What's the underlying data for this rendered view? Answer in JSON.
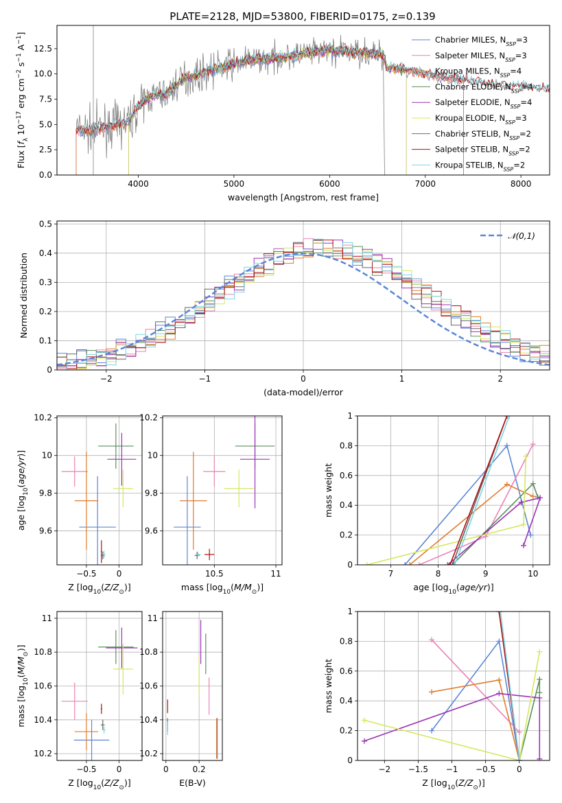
{
  "figure": {
    "title": "PLATE=2128, MJD=53800, FIBERID=0175, z=0.139"
  },
  "colors": {
    "Chabrier MILES": "#5b85d6",
    "Salpeter MILES": "#e882b4",
    "Kroupa MILES": "#e07b2a",
    "Chabrier ELODIE": "#5b8f5b",
    "Salpeter ELODIE": "#9b30b5",
    "Kroupa ELODIE": "#d4e85a",
    "Chabrier STELIB": "#666666",
    "Salpeter STELIB": "#b01010",
    "Kroupa STELIB": "#7dd3e0"
  },
  "chart_data": [
    {
      "id": "spectrum",
      "type": "line",
      "title": "PLATE=2128, MJD=53800, FIBERID=0175, z=0.139",
      "xlabel": "wavelength [Angstrom, rest frame]",
      "ylabel": "Flux [f_λ 10^-17 erg cm^-2 s^-1 A^-1]",
      "xlim": [
        3150,
        8300
      ],
      "ylim": [
        0,
        14.8
      ],
      "xticks": [
        4000,
        5000,
        6000,
        7000,
        8000
      ],
      "yticks": [
        0.0,
        2.5,
        5.0,
        7.5,
        10.0,
        12.5
      ],
      "legend_position": "top-right",
      "legend": [
        {
          "label": "Chabrier MILES, N",
          "sub": "SSP",
          "tail": "=3",
          "series": "Chabrier MILES"
        },
        {
          "label": "Salpeter MILES, N",
          "sub": "SSP",
          "tail": "=3",
          "series": "Salpeter MILES"
        },
        {
          "label": "Kroupa MILES, N",
          "sub": "SSP",
          "tail": "=4",
          "series": "Kroupa MILES"
        },
        {
          "label": "Chabrier ELODIE, N",
          "sub": "SSP",
          "tail": "=4",
          "series": "Chabrier ELODIE"
        },
        {
          "label": "Salpeter ELODIE, N",
          "sub": "SSP",
          "tail": "=4",
          "series": "Salpeter ELODIE"
        },
        {
          "label": "Kroupa ELODIE, N",
          "sub": "SSP",
          "tail": "=3",
          "series": "Kroupa ELODIE"
        },
        {
          "label": "Chabrier STELIB, N",
          "sub": "SSP",
          "tail": "=2",
          "series": "Chabrier STELIB"
        },
        {
          "label": "Salpeter STELIB, N",
          "sub": "SSP",
          "tail": "=2",
          "series": "Salpeter STELIB"
        },
        {
          "label": "Kroupa STELIB, N",
          "sub": "SSP",
          "tail": "=2",
          "series": "Kroupa STELIB"
        }
      ],
      "model_coverage": {
        "MILES": [
          3350,
          7400
        ],
        "ELODIE": [
          3900,
          6800
        ],
        "STELIB": [
          3350,
          8300
        ]
      },
      "continuum": [
        [
          3350,
          4.5
        ],
        [
          3500,
          4.4
        ],
        [
          3600,
          4.6
        ],
        [
          3700,
          4.8
        ],
        [
          3800,
          5.0
        ],
        [
          3900,
          5.2
        ],
        [
          4000,
          6.8
        ],
        [
          4100,
          7.6
        ],
        [
          4200,
          8.0
        ],
        [
          4300,
          8.0
        ],
        [
          4400,
          9.0
        ],
        [
          4500,
          9.6
        ],
        [
          4600,
          9.8
        ],
        [
          4700,
          10.2
        ],
        [
          4800,
          10.5
        ],
        [
          4900,
          10.7
        ],
        [
          5000,
          11.0
        ],
        [
          5200,
          11.4
        ],
        [
          5400,
          11.5
        ],
        [
          5600,
          11.8
        ],
        [
          5800,
          12.1
        ],
        [
          6000,
          12.3
        ],
        [
          6200,
          12.2
        ],
        [
          6400,
          12.1
        ],
        [
          6560,
          11.9
        ],
        [
          6600,
          10.6
        ],
        [
          6800,
          10.4
        ],
        [
          7000,
          10.0
        ],
        [
          7200,
          9.6
        ],
        [
          7400,
          9.4
        ],
        [
          7600,
          9.1
        ],
        [
          7800,
          8.8
        ],
        [
          8000,
          8.7
        ],
        [
          8300,
          8.5
        ]
      ]
    },
    {
      "id": "residuals",
      "type": "line",
      "xlabel": "(data-model)/error",
      "ylabel": "Normed distribution",
      "xlim": [
        -2.5,
        2.5
      ],
      "ylim": [
        0,
        0.51
      ],
      "xticks": [
        -2,
        -1,
        0,
        1,
        2
      ],
      "yticks": [
        0.0,
        0.1,
        0.2,
        0.3,
        0.4,
        0.5
      ],
      "reference": {
        "name": "𝒩(0,1)",
        "mean": 0,
        "sigma": 1,
        "style": "dashed"
      },
      "legend_position": "top-right",
      "bin_width": 0.1
    },
    {
      "id": "age_vs_Z",
      "type": "scatter",
      "xlabel": "Z [log10(Z/Z⊙)]",
      "ylabel": "age [log10(age/yr)]",
      "xlim": [
        -0.95,
        0.35
      ],
      "ylim": [
        9.42,
        10.21
      ],
      "xticks": [
        -0.5,
        0.0
      ],
      "yticks": [
        9.6,
        9.8,
        10.0,
        10.2
      ],
      "points": [
        {
          "series": "Chabrier MILES",
          "x": -0.33,
          "y": 9.62,
          "xerr": 0.28,
          "yerr": 0.27
        },
        {
          "series": "Salpeter MILES",
          "x": -0.68,
          "y": 9.915,
          "xerr": 0.2,
          "yerr": 0.08
        },
        {
          "series": "Kroupa MILES",
          "x": -0.5,
          "y": 9.76,
          "xerr": 0.18,
          "yerr": 0.26
        },
        {
          "series": "Chabrier ELODIE",
          "x": -0.05,
          "y": 10.05,
          "xerr": 0.27,
          "yerr": 0.12
        },
        {
          "series": "Salpeter ELODIE",
          "x": 0.04,
          "y": 9.98,
          "xerr": 0.22,
          "yerr": 0.14
        },
        {
          "series": "Kroupa ELODIE",
          "x": 0.06,
          "y": 9.825,
          "xerr": 0.15,
          "yerr": 0.1
        },
        {
          "series": "Chabrier STELIB",
          "x": -0.25,
          "y": 9.47,
          "xerr": 0.03,
          "yerr": 0.02
        },
        {
          "series": "Salpeter STELIB",
          "x": -0.27,
          "y": 9.49,
          "xerr": 0.01,
          "yerr": 0.06
        },
        {
          "series": "Kroupa STELIB",
          "x": -0.23,
          "y": 9.475,
          "xerr": 0.02,
          "yerr": 0.02
        }
      ]
    },
    {
      "id": "age_vs_mass",
      "type": "scatter",
      "xlabel": "mass [log10(M/M⊙)]",
      "ylabel": "",
      "xlim": [
        10.08,
        11.05
      ],
      "ylim": [
        9.42,
        10.21
      ],
      "xticks": [
        10.5,
        11.0
      ],
      "yticks": [
        9.6,
        9.8,
        10.0,
        10.2
      ],
      "points": [
        {
          "series": "Chabrier MILES",
          "x": 10.28,
          "y": 9.62,
          "xerr": 0.11,
          "yerr": 0.27
        },
        {
          "series": "Salpeter MILES",
          "x": 10.5,
          "y": 9.915,
          "xerr": 0.09,
          "yerr": 0.08
        },
        {
          "series": "Kroupa MILES",
          "x": 10.33,
          "y": 9.76,
          "xerr": 0.11,
          "yerr": 0.26
        },
        {
          "series": "Chabrier ELODIE",
          "x": 10.83,
          "y": 10.05,
          "xerr": 0.16,
          "yerr": 0.12
        },
        {
          "series": "Salpeter ELODIE",
          "x": 10.83,
          "y": 9.98,
          "xerr": 0.12,
          "yerr": 0.26
        },
        {
          "series": "Kroupa ELODIE",
          "x": 10.7,
          "y": 9.825,
          "xerr": 0.12,
          "yerr": 0.1
        },
        {
          "series": "Chabrier STELIB",
          "x": 10.36,
          "y": 9.47,
          "xerr": 0.02,
          "yerr": 0.02
        },
        {
          "series": "Salpeter STELIB",
          "x": 10.46,
          "y": 9.475,
          "xerr": 0.04,
          "yerr": 0.03
        },
        {
          "series": "Kroupa STELIB",
          "x": 10.37,
          "y": 9.475,
          "xerr": 0.02,
          "yerr": 0.01
        }
      ]
    },
    {
      "id": "weight_vs_age",
      "type": "line",
      "xlabel": "age [log10(age/yr)]",
      "ylabel": "mass weight",
      "xlim": [
        6.3,
        10.35
      ],
      "ylim": [
        0,
        1.0
      ],
      "xticks": [
        7,
        8,
        9,
        10
      ],
      "yticks": [
        0.0,
        0.2,
        0.4,
        0.6,
        0.8,
        1.0
      ],
      "series": [
        {
          "name": "Chabrier MILES",
          "points": [
            [
              7.3,
              0.0
            ],
            [
              9.45,
              0.8
            ],
            [
              9.95,
              0.2
            ]
          ]
        },
        {
          "name": "Salpeter MILES",
          "points": [
            [
              7.6,
              0.0
            ],
            [
              9.0,
              0.19
            ],
            [
              10.0,
              0.81
            ]
          ]
        },
        {
          "name": "Kroupa MILES",
          "points": [
            [
              7.4,
              0.0
            ],
            [
              9.45,
              0.54
            ],
            [
              10.0,
              0.46
            ]
          ]
        },
        {
          "name": "Chabrier ELODIE",
          "points": [
            [
              8.3,
              0.0
            ],
            [
              10.0,
              0.545
            ],
            [
              10.1,
              0.455
            ]
          ]
        },
        {
          "name": "Salpeter ELODIE",
          "points": [
            [
              8.2,
              0.0
            ],
            [
              9.75,
              0.42
            ],
            [
              10.15,
              0.45
            ],
            [
              9.8,
              0.13
            ]
          ]
        },
        {
          "name": "Kroupa ELODIE",
          "points": [
            [
              6.5,
              0.0
            ],
            [
              9.8,
              0.27
            ],
            [
              9.85,
              0.73
            ]
          ]
        },
        {
          "name": "Chabrier STELIB",
          "points": [
            [
              8.3,
              0.0
            ],
            [
              9.45,
              1.0
            ]
          ]
        },
        {
          "name": "Salpeter STELIB",
          "points": [
            [
              8.25,
              0.0
            ],
            [
              9.45,
              1.0
            ]
          ]
        },
        {
          "name": "Kroupa STELIB",
          "points": [
            [
              8.35,
              0.0
            ],
            [
              9.5,
              1.0
            ]
          ]
        }
      ]
    },
    {
      "id": "mass_vs_Z",
      "type": "scatter",
      "xlabel": "Z [log10(Z/Z⊙)]",
      "ylabel": "mass [log10(M/M⊙)]",
      "xlim": [
        -0.95,
        0.35
      ],
      "ylim": [
        10.16,
        11.04
      ],
      "xticks": [
        -0.5,
        0.0
      ],
      "yticks": [
        10.2,
        10.4,
        10.6,
        10.8,
        11.0
      ],
      "points": [
        {
          "series": "Chabrier MILES",
          "x": -0.42,
          "y": 10.28,
          "xerr": 0.27,
          "yerr": 0.12
        },
        {
          "series": "Salpeter MILES",
          "x": -0.68,
          "y": 10.51,
          "xerr": 0.2,
          "yerr": 0.11
        },
        {
          "series": "Kroupa MILES",
          "x": -0.5,
          "y": 10.33,
          "xerr": 0.18,
          "yerr": 0.11
        },
        {
          "series": "Chabrier ELODIE",
          "x": -0.05,
          "y": 10.83,
          "xerr": 0.27,
          "yerr": 0.1
        },
        {
          "series": "Salpeter ELODIE",
          "x": 0.04,
          "y": 10.825,
          "xerr": 0.24,
          "yerr": 0.12
        },
        {
          "series": "Kroupa ELODIE",
          "x": 0.06,
          "y": 10.7,
          "xerr": 0.15,
          "yerr": 0.15
        },
        {
          "series": "Chabrier STELIB",
          "x": -0.25,
          "y": 10.37,
          "xerr": 0.03,
          "yerr": 0.03
        },
        {
          "series": "Salpeter STELIB",
          "x": -0.27,
          "y": 10.465,
          "xerr": 0.01,
          "yerr": 0.03
        },
        {
          "series": "Kroupa STELIB",
          "x": -0.23,
          "y": 10.34,
          "xerr": 0.02,
          "yerr": 0.02
        }
      ]
    },
    {
      "id": "mass_vs_ebv",
      "type": "scatter",
      "xlabel": "E(B-V)",
      "ylabel": "",
      "xlim": [
        -0.02,
        0.34
      ],
      "ylim": [
        10.16,
        11.04
      ],
      "xticks": [
        0.0,
        0.2
      ],
      "yticks": [
        10.2,
        10.4,
        10.6,
        10.8,
        11.0
      ],
      "points": [
        {
          "series": "Chabrier MILES",
          "x": 0.31,
          "y": 10.29,
          "xerr": 0.0,
          "yerr": 0.12
        },
        {
          "series": "Salpeter MILES",
          "x": 0.26,
          "y": 10.54,
          "xerr": 0.0,
          "yerr": 0.11
        },
        {
          "series": "Kroupa MILES",
          "x": 0.305,
          "y": 10.29,
          "xerr": 0.0,
          "yerr": 0.12
        },
        {
          "series": "Chabrier ELODIE",
          "x": 0.24,
          "y": 10.79,
          "xerr": 0.0,
          "yerr": 0.12
        },
        {
          "series": "Salpeter ELODIE",
          "x": 0.21,
          "y": 10.86,
          "xerr": 0.0,
          "yerr": 0.13
        },
        {
          "series": "Kroupa ELODIE",
          "x": 0.2,
          "y": 10.66,
          "xerr": 0.0,
          "yerr": 0.12
        },
        {
          "series": "Chabrier STELIB",
          "x": 0.01,
          "y": 10.37,
          "xerr": 0.0,
          "yerr": 0.04
        },
        {
          "series": "Salpeter STELIB",
          "x": 0.01,
          "y": 10.48,
          "xerr": 0.0,
          "yerr": 0.04
        },
        {
          "series": "Kroupa STELIB",
          "x": 0.01,
          "y": 10.35,
          "xerr": 0.0,
          "yerr": 0.04
        }
      ]
    },
    {
      "id": "weight_vs_Z",
      "type": "line",
      "xlabel": "Z [log10(Z/Z⊙)]",
      "ylabel": "mass weight",
      "xlim": [
        -2.4,
        0.45
      ],
      "ylim": [
        0,
        1.0
      ],
      "xticks": [
        -2.0,
        -1.5,
        -1.0,
        -0.5,
        0.0
      ],
      "yticks": [
        0.0,
        0.2,
        0.4,
        0.6,
        0.8,
        1.0
      ],
      "series": [
        {
          "name": "Chabrier MILES",
          "points": [
            [
              -1.3,
              0.2
            ],
            [
              -0.3,
              0.8
            ],
            [
              0.0,
              0.0
            ]
          ]
        },
        {
          "name": "Salpeter MILES",
          "points": [
            [
              -1.3,
              0.81
            ],
            [
              0.0,
              0.19
            ]
          ]
        },
        {
          "name": "Kroupa MILES",
          "points": [
            [
              -1.3,
              0.46
            ],
            [
              -0.3,
              0.54
            ],
            [
              0.0,
              0.0
            ]
          ]
        },
        {
          "name": "Chabrier ELODIE",
          "points": [
            [
              0.0,
              0.0
            ],
            [
              0.3,
              0.545
            ],
            [
              0.3,
              0.455
            ]
          ]
        },
        {
          "name": "Salpeter ELODIE",
          "points": [
            [
              -2.3,
              0.13
            ],
            [
              -0.3,
              0.45
            ],
            [
              0.3,
              0.42
            ],
            [
              0.3,
              0.01
            ]
          ]
        },
        {
          "name": "Kroupa ELODIE",
          "points": [
            [
              -2.3,
              0.27
            ],
            [
              0.0,
              0.0
            ],
            [
              0.3,
              0.73
            ]
          ]
        },
        {
          "name": "Chabrier STELIB",
          "points": [
            [
              -0.3,
              1.0
            ],
            [
              0.0,
              0.0
            ]
          ]
        },
        {
          "name": "Salpeter STELIB",
          "points": [
            [
              -0.3,
              1.0
            ],
            [
              0.0,
              0.0
            ]
          ]
        },
        {
          "name": "Kroupa STELIB",
          "points": [
            [
              -0.28,
              1.0
            ],
            [
              0.0,
              0.0
            ]
          ]
        }
      ]
    }
  ]
}
